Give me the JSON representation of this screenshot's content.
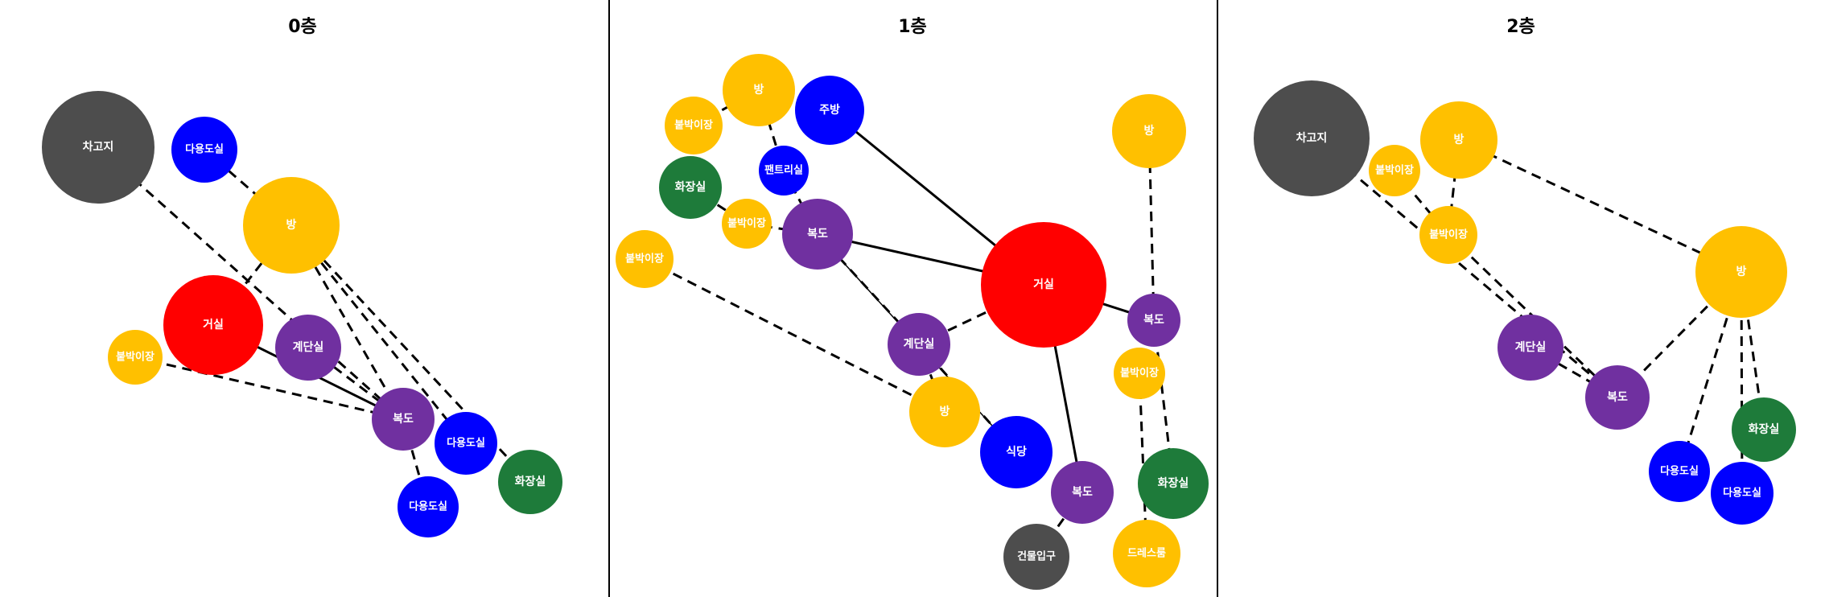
{
  "colors": {
    "living": "#ff0000",
    "room": "#ffc000",
    "corridor": "#7030a0",
    "utility": "#0000ff",
    "bathroom": "#1e7b3a",
    "garage": "#4d4d4d",
    "label": "#ffffff"
  },
  "panels": [
    {
      "title": "0층",
      "nodes": [
        {
          "id": "garage",
          "label": "차고지",
          "kind": "garage"
        },
        {
          "id": "util1",
          "label": "다용도실",
          "kind": "utility"
        },
        {
          "id": "room",
          "label": "방",
          "kind": "room"
        },
        {
          "id": "living",
          "label": "거실",
          "kind": "living"
        },
        {
          "id": "closet",
          "label": "붙박이장",
          "kind": "room"
        },
        {
          "id": "stairs",
          "label": "계단실",
          "kind": "corridor"
        },
        {
          "id": "hall",
          "label": "복도",
          "kind": "corridor"
        },
        {
          "id": "util2",
          "label": "다용도실",
          "kind": "utility"
        },
        {
          "id": "util3",
          "label": "다용도실",
          "kind": "utility"
        },
        {
          "id": "bath",
          "label": "화장실",
          "kind": "bathroom"
        }
      ],
      "edges": [
        {
          "from": "garage",
          "to": "hall",
          "style": "dashed"
        },
        {
          "from": "util1",
          "to": "room",
          "style": "dashed"
        },
        {
          "from": "room",
          "to": "living",
          "style": "dashed"
        },
        {
          "from": "room",
          "to": "hall",
          "style": "dashed"
        },
        {
          "from": "room",
          "to": "util2",
          "style": "dashed"
        },
        {
          "from": "room",
          "to": "bath",
          "style": "dashed"
        },
        {
          "from": "living",
          "to": "hall",
          "style": "solid"
        },
        {
          "from": "closet",
          "to": "hall",
          "style": "dashed"
        },
        {
          "from": "stairs",
          "to": "hall",
          "style": "dashed"
        },
        {
          "from": "hall",
          "to": "util3",
          "style": "dashed"
        }
      ]
    },
    {
      "title": "1층",
      "nodes": [
        {
          "id": "room1",
          "label": "방",
          "kind": "room"
        },
        {
          "id": "closet1",
          "label": "붙박이장",
          "kind": "room"
        },
        {
          "id": "kitchen",
          "label": "주방",
          "kind": "utility"
        },
        {
          "id": "pantry",
          "label": "팬트리실",
          "kind": "utility"
        },
        {
          "id": "bath1",
          "label": "화장실",
          "kind": "bathroom"
        },
        {
          "id": "closet2",
          "label": "붙박이장",
          "kind": "room"
        },
        {
          "id": "hall1",
          "label": "복도",
          "kind": "corridor"
        },
        {
          "id": "closet3",
          "label": "붙박이장",
          "kind": "room"
        },
        {
          "id": "living",
          "label": "거실",
          "kind": "living"
        },
        {
          "id": "room2",
          "label": "방",
          "kind": "room"
        },
        {
          "id": "hall2",
          "label": "복도",
          "kind": "corridor"
        },
        {
          "id": "stairs",
          "label": "계단실",
          "kind": "corridor"
        },
        {
          "id": "closet4",
          "label": "붙박이장",
          "kind": "room"
        },
        {
          "id": "room3",
          "label": "방",
          "kind": "room"
        },
        {
          "id": "dining",
          "label": "식당",
          "kind": "utility"
        },
        {
          "id": "hall3",
          "label": "복도",
          "kind": "corridor"
        },
        {
          "id": "bath2",
          "label": "화장실",
          "kind": "bathroom"
        },
        {
          "id": "entrance",
          "label": "건물입구",
          "kind": "garage"
        },
        {
          "id": "dress",
          "label": "드레스룸",
          "kind": "room"
        }
      ],
      "edges": [
        {
          "from": "room1",
          "to": "closet1",
          "style": "dashed"
        },
        {
          "from": "room1",
          "to": "pantry",
          "style": "dashed"
        },
        {
          "from": "kitchen",
          "to": "living",
          "style": "solid"
        },
        {
          "from": "pantry",
          "to": "hall1",
          "style": "dashed"
        },
        {
          "from": "bath1",
          "to": "closet2",
          "style": "dashed"
        },
        {
          "from": "closet2",
          "to": "hall1",
          "style": "dashed"
        },
        {
          "from": "hall1",
          "to": "living",
          "style": "solid"
        },
        {
          "from": "hall1",
          "to": "stairs",
          "style": "dashed"
        },
        {
          "from": "hall1",
          "to": "dining",
          "style": "thin"
        },
        {
          "from": "closet3",
          "to": "room3",
          "style": "dashed"
        },
        {
          "from": "stairs",
          "to": "living",
          "style": "dashed"
        },
        {
          "from": "stairs",
          "to": "room3",
          "style": "dashed"
        },
        {
          "from": "stairs",
          "to": "dining",
          "style": "dashed"
        },
        {
          "from": "living",
          "to": "hall2",
          "style": "solid"
        },
        {
          "from": "living",
          "to": "hall3",
          "style": "solid"
        },
        {
          "from": "room2",
          "to": "hall2",
          "style": "dashed"
        },
        {
          "from": "hall2",
          "to": "bath2",
          "style": "dashed"
        },
        {
          "from": "closet4",
          "to": "dress",
          "style": "dashed"
        },
        {
          "from": "hall3",
          "to": "entrance",
          "style": "dashed"
        }
      ]
    },
    {
      "title": "2층",
      "nodes": [
        {
          "id": "garage",
          "label": "차고지",
          "kind": "garage"
        },
        {
          "id": "room1",
          "label": "방",
          "kind": "room"
        },
        {
          "id": "closet1",
          "label": "붙박이장",
          "kind": "room"
        },
        {
          "id": "closet2",
          "label": "붙박이장",
          "kind": "room"
        },
        {
          "id": "room2",
          "label": "방",
          "kind": "room"
        },
        {
          "id": "stairs",
          "label": "계단실",
          "kind": "corridor"
        },
        {
          "id": "hall",
          "label": "복도",
          "kind": "corridor"
        },
        {
          "id": "bath",
          "label": "화장실",
          "kind": "bathroom"
        },
        {
          "id": "util1",
          "label": "다용도실",
          "kind": "utility"
        },
        {
          "id": "util2",
          "label": "다용도실",
          "kind": "utility"
        }
      ],
      "edges": [
        {
          "from": "garage",
          "to": "hall",
          "style": "dashed"
        },
        {
          "from": "room1",
          "to": "closet2",
          "style": "dashed"
        },
        {
          "from": "room1",
          "to": "room2",
          "style": "dashed"
        },
        {
          "from": "closet1",
          "to": "closet2",
          "style": "dashed"
        },
        {
          "from": "closet2",
          "to": "hall",
          "style": "dashed"
        },
        {
          "from": "stairs",
          "to": "hall",
          "style": "dashed"
        },
        {
          "from": "room2",
          "to": "hall",
          "style": "dashed"
        },
        {
          "from": "room2",
          "to": "bath",
          "style": "dashed"
        },
        {
          "from": "room2",
          "to": "util1",
          "style": "dashed"
        },
        {
          "from": "room2",
          "to": "util2",
          "style": "dashed"
        }
      ]
    }
  ]
}
